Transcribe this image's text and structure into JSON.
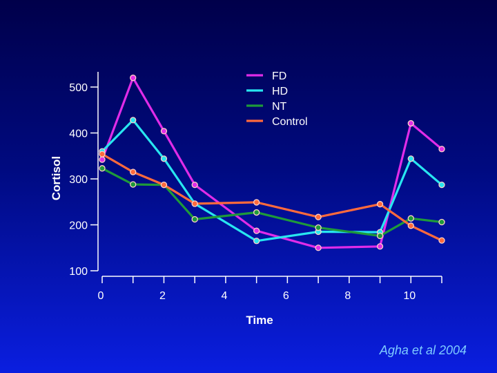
{
  "chart_data": {
    "type": "line",
    "title": "",
    "xlabel": "Time",
    "ylabel": "Cortisol",
    "x": [
      0,
      1,
      2,
      3,
      5,
      7,
      9,
      10,
      11
    ],
    "xlim": [
      0,
      11
    ],
    "ylim": [
      100,
      550
    ],
    "xticks": [
      0,
      2,
      4,
      6,
      8,
      10
    ],
    "xminor": [
      1,
      3,
      5,
      7,
      9,
      11
    ],
    "yticks": [
      100,
      200,
      300,
      400,
      500
    ],
    "legend_position": "top-center",
    "series": [
      {
        "name": "FD",
        "color": "#e02ce8",
        "values": [
          342,
          520,
          404,
          287,
          187,
          150,
          153,
          421,
          365
        ]
      },
      {
        "name": "HD",
        "color": "#28e6f0",
        "values": [
          360,
          428,
          344,
          246,
          165,
          185,
          184,
          344,
          287
        ]
      },
      {
        "name": "NT",
        "color": "#1e9a3a",
        "values": [
          323,
          288,
          287,
          212,
          227,
          194,
          176,
          214,
          206
        ]
      },
      {
        "name": "Control",
        "color": "#ff6a3c",
        "values": [
          354,
          315,
          287,
          246,
          249,
          217,
          245,
          198,
          166
        ]
      }
    ]
  },
  "citation": "Agha et al 2004"
}
